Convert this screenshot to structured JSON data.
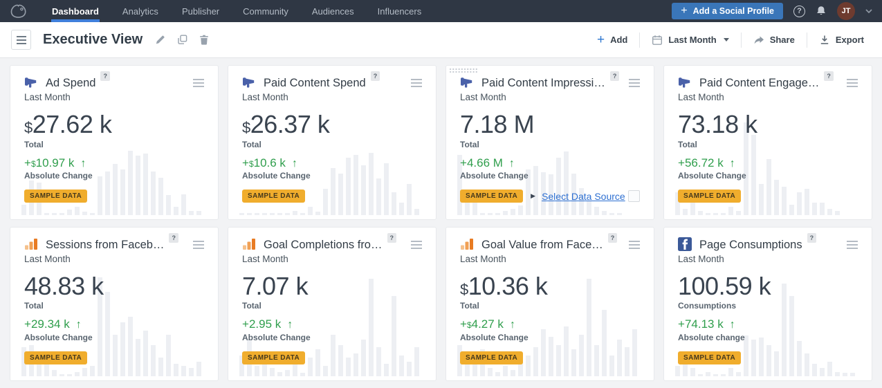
{
  "nav": {
    "items": [
      {
        "label": "Dashboard",
        "active": true
      },
      {
        "label": "Analytics",
        "active": false
      },
      {
        "label": "Publisher",
        "active": false
      },
      {
        "label": "Community",
        "active": false
      },
      {
        "label": "Audiences",
        "active": false
      },
      {
        "label": "Influencers",
        "active": false
      }
    ],
    "add_profile_plus": "+",
    "add_profile_label": "Add a Social Profile",
    "help_glyph": "?",
    "avatar_initials": "JT"
  },
  "toolbar": {
    "title": "Executive View",
    "add_plus": "+",
    "add_label": "Add",
    "date_range_label": "Last Month",
    "share_label": "Share",
    "export_label": "Export"
  },
  "icons": {
    "owl-logo": "owl outline",
    "megaphone": "blue bullhorn",
    "analytics": "orange analytics bars",
    "facebook": "facebook f square",
    "up-arrow": "↑",
    "link-caret": "▶"
  },
  "colors": {
    "nav_bg": "#2f3744",
    "active_underline": "#3f7fdb",
    "add_profile_blue": "#3a76b9",
    "link_blue": "#2d6fd1",
    "change_green": "#2f9e4c",
    "badge_yellow": "#f0ad2d",
    "page_bg": "#f2f3f5",
    "bar_gray": "#edeff3",
    "avatar_brown": "#6e3b2f",
    "megaphone_blue": "#4a61a9",
    "facebook_blue": "#3b5998"
  },
  "cards": [
    {
      "icon": "megaphone",
      "title": "Ad Spend",
      "help": "?",
      "period": "Last Month",
      "value_currency": "$",
      "value": "27.62 k",
      "value_label": "Total",
      "change_sign": "+",
      "change_currency": "$",
      "change_amount": "10.97 k",
      "change_arrow": "↑",
      "change_label": "Absolute Change",
      "badge": "SAMPLE DATA",
      "drag_handle": false,
      "link": "",
      "bars": [
        10,
        33,
        31,
        0,
        0,
        0,
        5,
        8,
        3,
        0,
        37,
        42,
        49,
        44,
        62,
        57,
        59,
        42,
        36,
        19,
        8,
        20,
        4,
        4
      ]
    },
    {
      "icon": "megaphone",
      "title": "Paid Content Spend",
      "help": "?",
      "period": "Last Month",
      "value_currency": "$",
      "value": "26.37 k",
      "value_label": "Total",
      "change_sign": "+",
      "change_currency": "$",
      "change_amount": "10.6 k",
      "change_arrow": "↑",
      "change_label": "Absolute Change",
      "badge": "SAMPLE DATA",
      "drag_handle": false,
      "link": "",
      "bars": [
        0,
        0,
        0,
        0,
        0,
        0,
        0,
        4,
        2,
        8,
        3,
        25,
        45,
        40,
        55,
        58,
        48,
        60,
        35,
        50,
        22,
        12,
        30,
        6
      ]
    },
    {
      "icon": "megaphone",
      "title": "Paid Content Impressi…",
      "help": "?",
      "period": "Last Month",
      "value_currency": "",
      "value": "7.18 M",
      "value_label": "Total",
      "change_sign": "+",
      "change_currency": "",
      "change_amount": "4.66 M",
      "change_arrow": "↑",
      "change_label": "Absolute Change",
      "badge": "SAMPLE DATA",
      "drag_handle": true,
      "link": "Select Data Source",
      "bars": [
        58,
        12,
        14,
        2,
        0,
        0,
        4,
        6,
        9,
        44,
        47,
        41,
        39,
        55,
        61,
        40,
        26,
        14,
        8,
        4,
        2,
        2
      ]
    },
    {
      "icon": "megaphone",
      "title": "Paid Content Engage…",
      "help": "?",
      "period": "Last Month",
      "value_currency": "",
      "value": "73.18 k",
      "value_label": "Total",
      "change_sign": "+",
      "change_currency": "",
      "change_amount": "56.72 k",
      "change_arrow": "↑",
      "change_label": "Absolute Change",
      "badge": "SAMPLE DATA",
      "drag_handle": false,
      "link": "",
      "bars": [
        22,
        6,
        18,
        4,
        0,
        0,
        0,
        8,
        4,
        89,
        77,
        30,
        54,
        34,
        27,
        10,
        22,
        25,
        12,
        12,
        6,
        4
      ]
    },
    {
      "icon": "analytics",
      "title": "Sessions from Faceb…",
      "help": "?",
      "period": "Last Month",
      "value_currency": "",
      "value": "48.83 k",
      "value_label": "Total",
      "change_sign": "+",
      "change_currency": "",
      "change_amount": "29.34 k",
      "change_arrow": "↑",
      "change_label": "Absolute Change",
      "badge": "SAMPLE DATA",
      "drag_handle": false,
      "link": "",
      "bars": [
        28,
        30,
        12,
        16,
        6,
        2,
        0,
        4,
        8,
        10,
        95,
        81,
        40,
        52,
        57,
        36,
        44,
        30,
        18,
        40,
        12,
        10,
        8,
        14
      ]
    },
    {
      "icon": "analytics",
      "title": "Goal Completions fro…",
      "help": "?",
      "period": "Last Month",
      "value_currency": "",
      "value": "7.07 k",
      "value_label": "Total",
      "change_sign": "+",
      "change_currency": "",
      "change_amount": "2.95 k",
      "change_arrow": "↑",
      "change_label": "Absolute Change",
      "badge": "SAMPLE DATA",
      "drag_handle": false,
      "link": "",
      "bars": [
        20,
        35,
        10,
        22,
        8,
        4,
        6,
        12,
        3,
        18,
        26,
        10,
        40,
        30,
        18,
        22,
        35,
        94,
        28,
        12,
        77,
        20,
        14,
        28
      ]
    },
    {
      "icon": "analytics",
      "title": "Goal Value from Face…",
      "help": "?",
      "period": "Last Month",
      "value_currency": "$",
      "value": "10.36 k",
      "value_label": "Total",
      "change_sign": "+",
      "change_currency": "$",
      "change_amount": "4.27 k",
      "change_arrow": "↑",
      "change_label": "Absolute Change",
      "badge": "SAMPLE DATA",
      "drag_handle": false,
      "link": "",
      "bars": [
        30,
        22,
        14,
        26,
        8,
        4,
        10,
        6,
        14,
        20,
        28,
        45,
        38,
        30,
        48,
        26,
        40,
        94,
        30,
        64,
        20,
        35,
        28,
        45
      ]
    },
    {
      "icon": "facebook",
      "title": "Page Consumptions",
      "help": "?",
      "period": "Last Month",
      "value_currency": "",
      "value": "100.59 k",
      "value_label": "Consumptions",
      "change_sign": "+",
      "change_currency": "",
      "change_amount": "74.13 k",
      "change_arrow": "↑",
      "change_label": "Absolute change",
      "badge": "SAMPLE DATA",
      "drag_handle": false,
      "link": "",
      "bars": [
        10,
        18,
        8,
        2,
        4,
        2,
        2,
        8,
        4,
        39,
        35,
        37,
        30,
        24,
        89,
        77,
        34,
        22,
        12,
        8,
        14,
        4,
        3,
        3
      ]
    }
  ]
}
